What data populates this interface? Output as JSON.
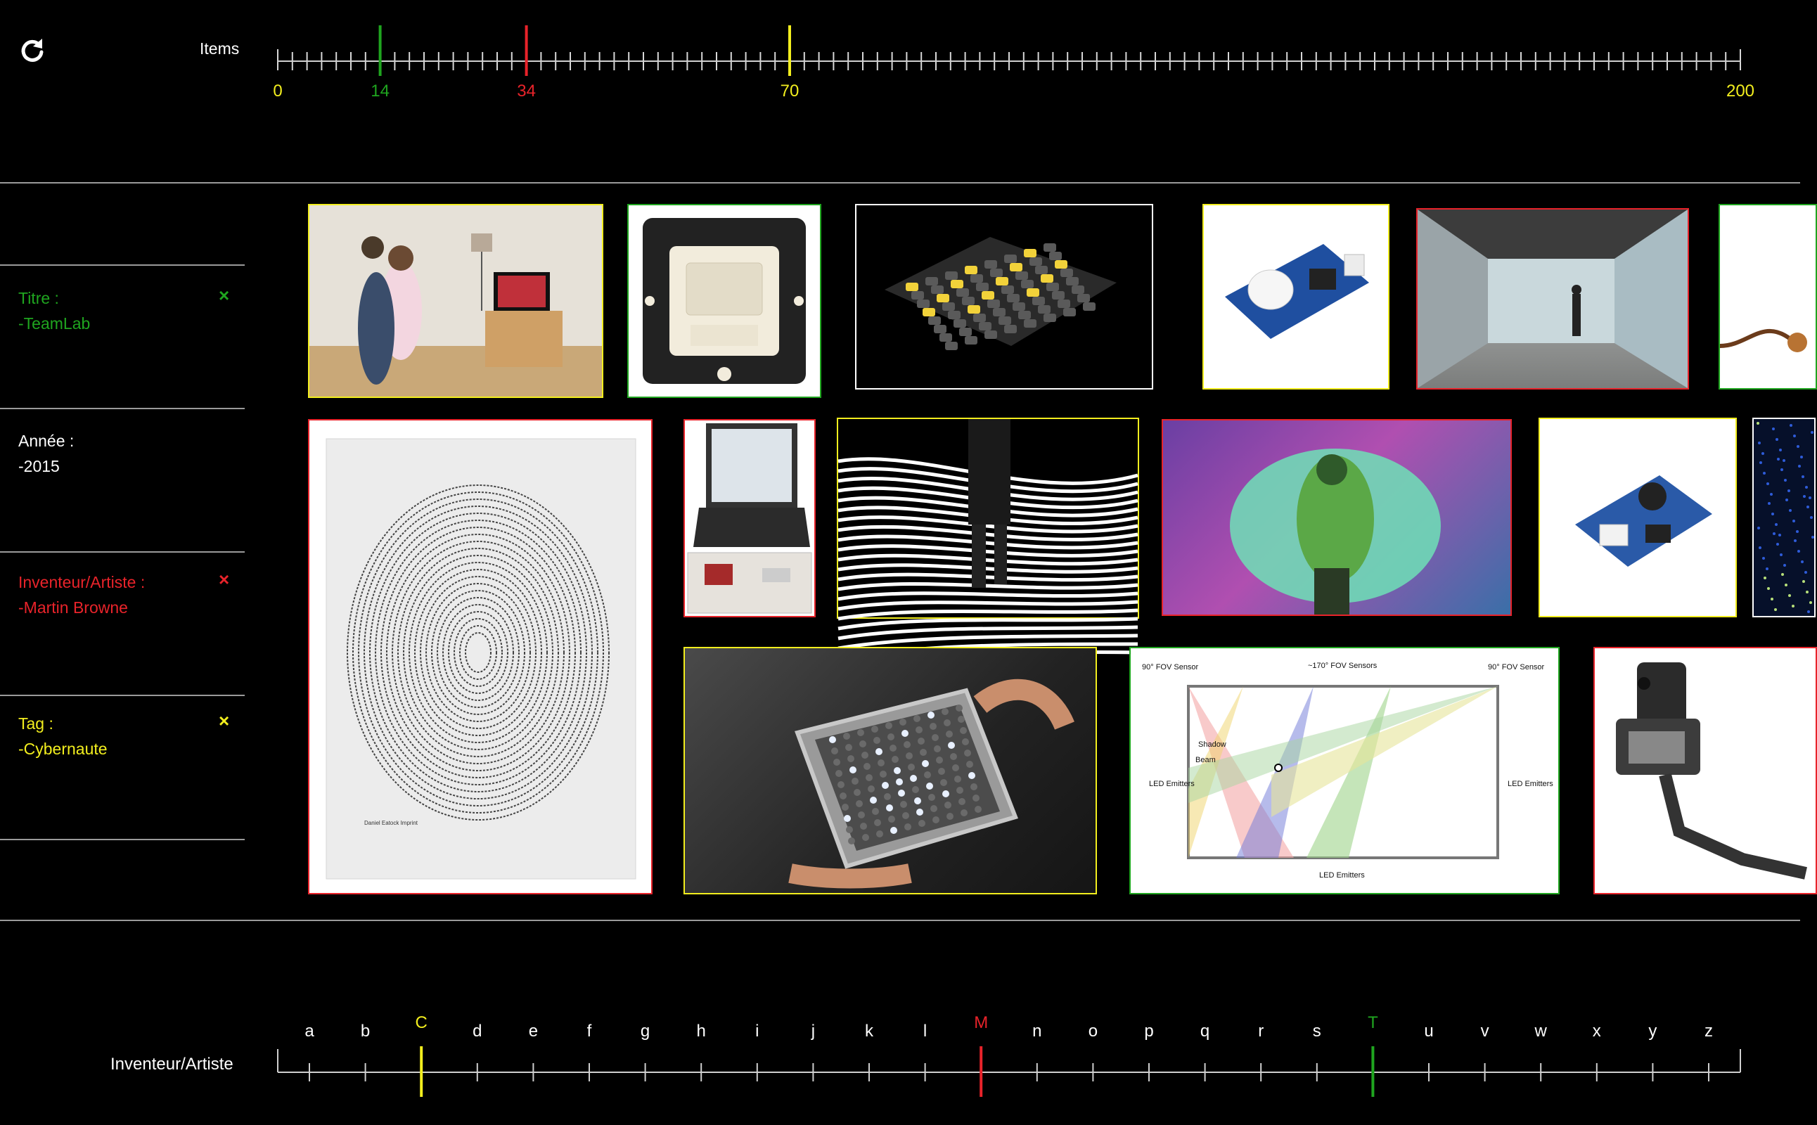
{
  "top_bar": {
    "items_label": "Items",
    "refresh_icon": "refresh-icon",
    "scale": {
      "min": 0,
      "max": 200,
      "minor_step": 2,
      "labels": [
        {
          "text": "0",
          "value": 0,
          "color": "#f2ee1e"
        },
        {
          "text": "14",
          "value": 14,
          "color": "#1fa51f"
        },
        {
          "text": "34",
          "value": 34,
          "color": "#e8232a"
        },
        {
          "text": "70",
          "value": 70,
          "color": "#f2ee1e"
        },
        {
          "text": "200",
          "value": 200,
          "color": "#f2ee1e"
        }
      ],
      "markers": [
        {
          "value": 14,
          "color": "#1fa51f"
        },
        {
          "value": 34,
          "color": "#e8232a"
        },
        {
          "value": 70,
          "color": "#f2ee1e"
        }
      ]
    }
  },
  "filters": [
    {
      "label": "Titre :",
      "value": "-TeamLab",
      "color": "#1fa51f",
      "removable": true
    },
    {
      "label": "Année :",
      "value": "-2015",
      "color": "#ffffff",
      "removable": false
    },
    {
      "label": "Inventeur/Artiste :",
      "value": "-Martin Browne",
      "color": "#e8232a",
      "removable": true
    },
    {
      "label": "Tag :",
      "value": "-Cybernaute",
      "color": "#f2ee1e",
      "removable": true
    }
  ],
  "remove_glyph": "×",
  "bottom_bar": {
    "label": "Inventeur/Artiste",
    "letters": [
      "a",
      "b",
      "c",
      "d",
      "e",
      "f",
      "g",
      "h",
      "i",
      "j",
      "k",
      "l",
      "m",
      "n",
      "o",
      "p",
      "q",
      "r",
      "s",
      "t",
      "u",
      "v",
      "w",
      "x",
      "y",
      "z"
    ],
    "highlighted": [
      {
        "letter": "C",
        "index": 2,
        "color": "#f2ee1e"
      },
      {
        "letter": "M",
        "index": 12,
        "color": "#e8232a"
      },
      {
        "letter": "T",
        "index": 19,
        "color": "#1fa51f"
      }
    ]
  },
  "colors": {
    "green": "#1fa51f",
    "red": "#e8232a",
    "yellow": "#f2ee1e",
    "white": "#ffffff",
    "background": "#000000"
  },
  "gallery": [
    {
      "name": "card-kinect-players",
      "border": "yellow"
    },
    {
      "name": "card-motion-sensor-switch",
      "border": "green"
    },
    {
      "name": "card-led-button-grid",
      "border": "white"
    },
    {
      "name": "card-pir-sensor-module",
      "border": "yellow"
    },
    {
      "name": "card-projection-corridor",
      "border": "red"
    },
    {
      "name": "card-cable-partial",
      "border": "green"
    },
    {
      "name": "card-fingerprint-book",
      "border": "red"
    },
    {
      "name": "card-laptop-fingerprint-scanner",
      "border": "red"
    },
    {
      "name": "card-striped-light-floor",
      "border": "yellow"
    },
    {
      "name": "card-interactive-light-dancer",
      "border": "red"
    },
    {
      "name": "card-sound-sensor-module",
      "border": "yellow"
    },
    {
      "name": "card-blue-lights-partial",
      "border": "white"
    },
    {
      "name": "card-tenori-on-device",
      "border": "yellow"
    },
    {
      "name": "card-led-touch-diagram",
      "border": "green"
    },
    {
      "name": "card-phone-flex-cable",
      "border": "red"
    }
  ],
  "diagram_text": {
    "fov_left": "90° FOV Sensor",
    "fov_mid": "~170° FOV Sensors",
    "fov_right": "90° FOV Sensor",
    "shadow": "Shadow",
    "beam": "Beam",
    "led_left": "LED Emitters",
    "led_right": "LED Emitters",
    "led_bottom": "LED Emitters"
  },
  "book_caption": "Daniel Eatock Imprint"
}
